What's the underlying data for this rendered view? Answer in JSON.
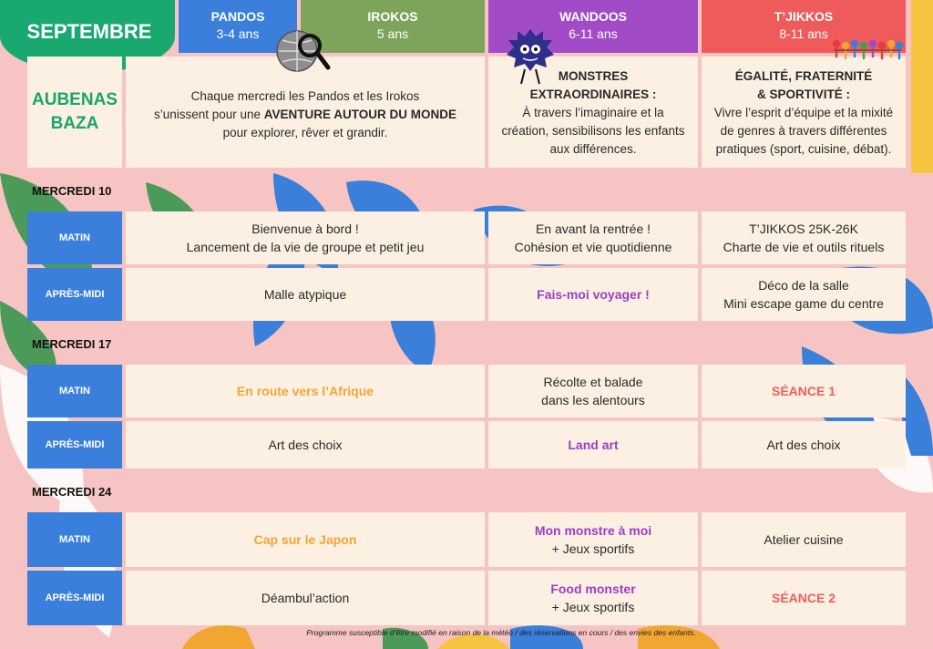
{
  "month": "SEPTEMBRE",
  "location": [
    "AUBENAS",
    "BAZA"
  ],
  "groups": [
    {
      "name": "PANDOS",
      "age": "3-4 ans",
      "color": "#3b7fdc"
    },
    {
      "name": "IROKOS",
      "age": "5 ans",
      "color": "#7ea35a"
    },
    {
      "name": "WANDOOS",
      "age": "6-11 ans",
      "color": "#a24bc7"
    },
    {
      "name": "T’JIKKOS",
      "age": "8-11 ans",
      "color": "#ef5b5b"
    }
  ],
  "intro": {
    "pandos_irokos": {
      "line1": "Chaque mercredi les Pandos et les Irokos",
      "line2_pre": "s’unissent pour une ",
      "line2_bold": "AVENTURE AUTOUR DU MONDE",
      "line3": "pour explorer, rêver et grandir."
    },
    "wandoos": {
      "title1": "MONSTRES",
      "title2": "EXTRAORDINAIRES :",
      "line1": "À travers l’imaginaire et la",
      "line2": "création, sensibilisons les enfants",
      "line3": "aux différences."
    },
    "tjikkos": {
      "title1": "ÉGALITÉ, FRATERNITÉ",
      "title2": "& SPORTIVITÉ :",
      "line1": "Vivre l’esprit d’équipe et la mixité",
      "line2": "de genres à travers différentes",
      "line3": "pratiques (sport, cuisine, débat)."
    }
  },
  "labels": {
    "matin": "MATIN",
    "apres_midi": "APRÈS-MIDI"
  },
  "days": [
    {
      "title": "MERCREDI 10",
      "matin": {
        "pandos_irokos": [
          "Bienvenue à bord !",
          "Lancement de la vie de groupe et petit jeu"
        ],
        "wandoos": [
          "En avant la rentrée !",
          "Cohésion et vie quotidienne"
        ],
        "tjikkos": [
          "T’JIKKOS 25K-26K",
          "Charte de vie et outils rituels"
        ]
      },
      "apres_midi": {
        "pandos_irokos": [
          "Malle atypique"
        ],
        "wandoos": [
          "Fais-moi voyager !"
        ],
        "tjikkos": [
          "Déco de la salle",
          "Mini escape game du centre"
        ]
      }
    },
    {
      "title": "MERCREDI 17",
      "matin": {
        "pandos_irokos": [
          "En route vers l’Afrique"
        ],
        "wandoos": [
          "Récolte et balade",
          "dans les alentours"
        ],
        "tjikkos": [
          "SÉANCE 1"
        ]
      },
      "apres_midi": {
        "pandos_irokos": [
          "Art des choix"
        ],
        "wandoos": [
          "Land art"
        ],
        "tjikkos": [
          "Art des choix"
        ]
      }
    },
    {
      "title": "MERCREDI 24",
      "matin": {
        "pandos_irokos": [
          "Cap sur le Japon"
        ],
        "wandoos": [
          "Mon monstre à moi",
          "+ Jeux sportifs"
        ],
        "tjikkos": [
          "Atelier cuisine"
        ]
      },
      "apres_midi": {
        "pandos_irokos": [
          "Déambul’action"
        ],
        "wandoos": [
          "Food monster",
          "+ Jeux sportifs"
        ],
        "tjikkos": [
          "SÉANCE 2"
        ]
      }
    }
  ],
  "footer": "Programme susceptible d’être modifié en raison de la météo / des réservations en cours / des envies des enfants.",
  "colors": {
    "background": "#f6c4c2",
    "cell": "#fbf0e2",
    "label_blue": "#3b7fdc",
    "month_green": "#19a86f",
    "location_green": "#1aa56d",
    "orange": "#f2a632",
    "purple": "#9a3fc8",
    "red": "#ec5e5c"
  },
  "icons": [
    "globe-magnifier-icon",
    "monster-icon",
    "people-chain-icon"
  ]
}
